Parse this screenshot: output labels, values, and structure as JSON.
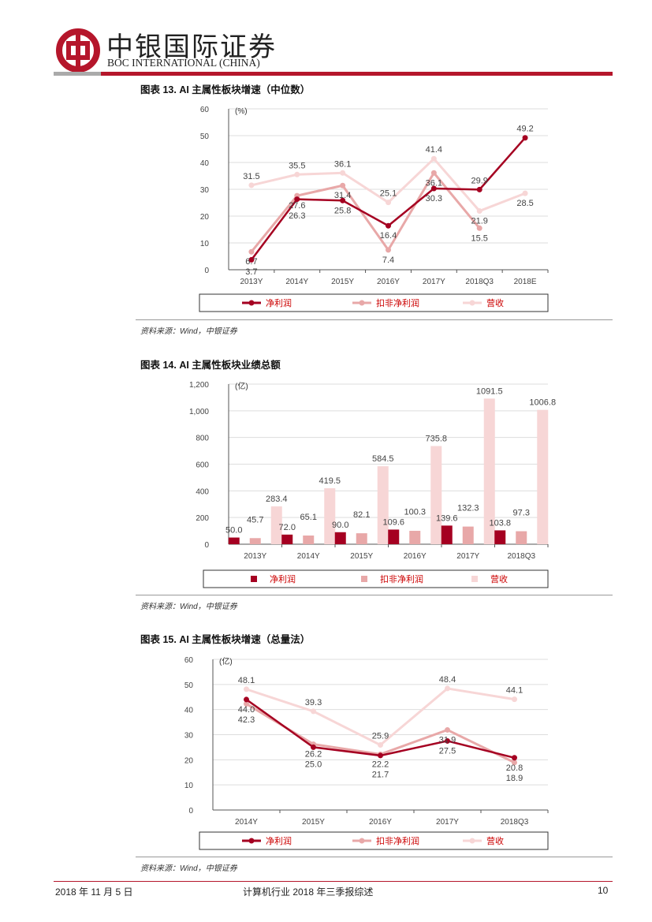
{
  "header": {
    "logo_cn": "中银国际证券",
    "logo_en": "BOC INTERNATIONAL (CHINA)"
  },
  "colors": {
    "net": "#a50021",
    "kf": "#e8a8a8",
    "rev": "#f7d6d6",
    "brand": "#b5162b"
  },
  "legend": [
    "净利润",
    "扣非净利润",
    "营收"
  ],
  "source": "资料来源：Wind，中银证券",
  "chart_data": [
    {
      "type": "line",
      "title": "图表 13. AI 主属性板块增速（中位数）",
      "unit": "(%)",
      "ylim": [
        0,
        60
      ],
      "yticks": [
        0,
        10,
        20,
        30,
        40,
        50,
        60
      ],
      "categories": [
        "2013Y",
        "2014Y",
        "2015Y",
        "2016Y",
        "2017Y",
        "2018Q3",
        "2018E"
      ],
      "series": [
        {
          "name": "净利润",
          "values": [
            3.7,
            26.3,
            25.8,
            16.4,
            30.3,
            29.9,
            49.2
          ]
        },
        {
          "name": "扣非净利润",
          "values": [
            6.7,
            27.6,
            31.4,
            7.4,
            36.1,
            15.5,
            null
          ]
        },
        {
          "name": "营收",
          "values": [
            31.5,
            35.5,
            36.1,
            25.1,
            41.4,
            21.9,
            28.5
          ]
        }
      ]
    },
    {
      "type": "bar",
      "title": "图表 14. AI 主属性板块业绩总额",
      "unit": "(亿)",
      "ylim": [
        0,
        1200
      ],
      "yticks": [
        "0",
        "200",
        "400",
        "600",
        "800",
        "1,000",
        "1,200"
      ],
      "categories": [
        "2013Y",
        "2014Y",
        "2015Y",
        "2016Y",
        "2017Y",
        "2018Q3"
      ],
      "series": [
        {
          "name": "净利润",
          "values": [
            50.0,
            72.0,
            90.0,
            109.6,
            139.6,
            103.8
          ]
        },
        {
          "name": "扣非净利润",
          "values": [
            45.7,
            65.1,
            82.1,
            100.3,
            132.3,
            97.3
          ]
        },
        {
          "name": "营收",
          "values": [
            283.4,
            419.5,
            584.5,
            735.8,
            1091.5,
            1006.8
          ]
        }
      ]
    },
    {
      "type": "line",
      "title": "图表 15. AI 主属性板块增速（总量法）",
      "unit": "(亿)",
      "ylim": [
        0,
        60
      ],
      "yticks": [
        0,
        10,
        20,
        30,
        40,
        50,
        60
      ],
      "categories": [
        "2014Y",
        "2015Y",
        "2016Y",
        "2017Y",
        "2018Q3"
      ],
      "series": [
        {
          "name": "净利润",
          "values": [
            44.0,
            25.0,
            21.7,
            27.5,
            20.8
          ]
        },
        {
          "name": "扣非净利润",
          "values": [
            42.3,
            26.2,
            22.2,
            31.9,
            18.9
          ]
        },
        {
          "name": "营收",
          "values": [
            48.1,
            39.3,
            25.9,
            48.4,
            44.1
          ]
        }
      ]
    }
  ],
  "footer": {
    "date": "2018 年 11 月 5 日",
    "title": "计算机行业 2018 年三季报综述",
    "page": "10"
  }
}
